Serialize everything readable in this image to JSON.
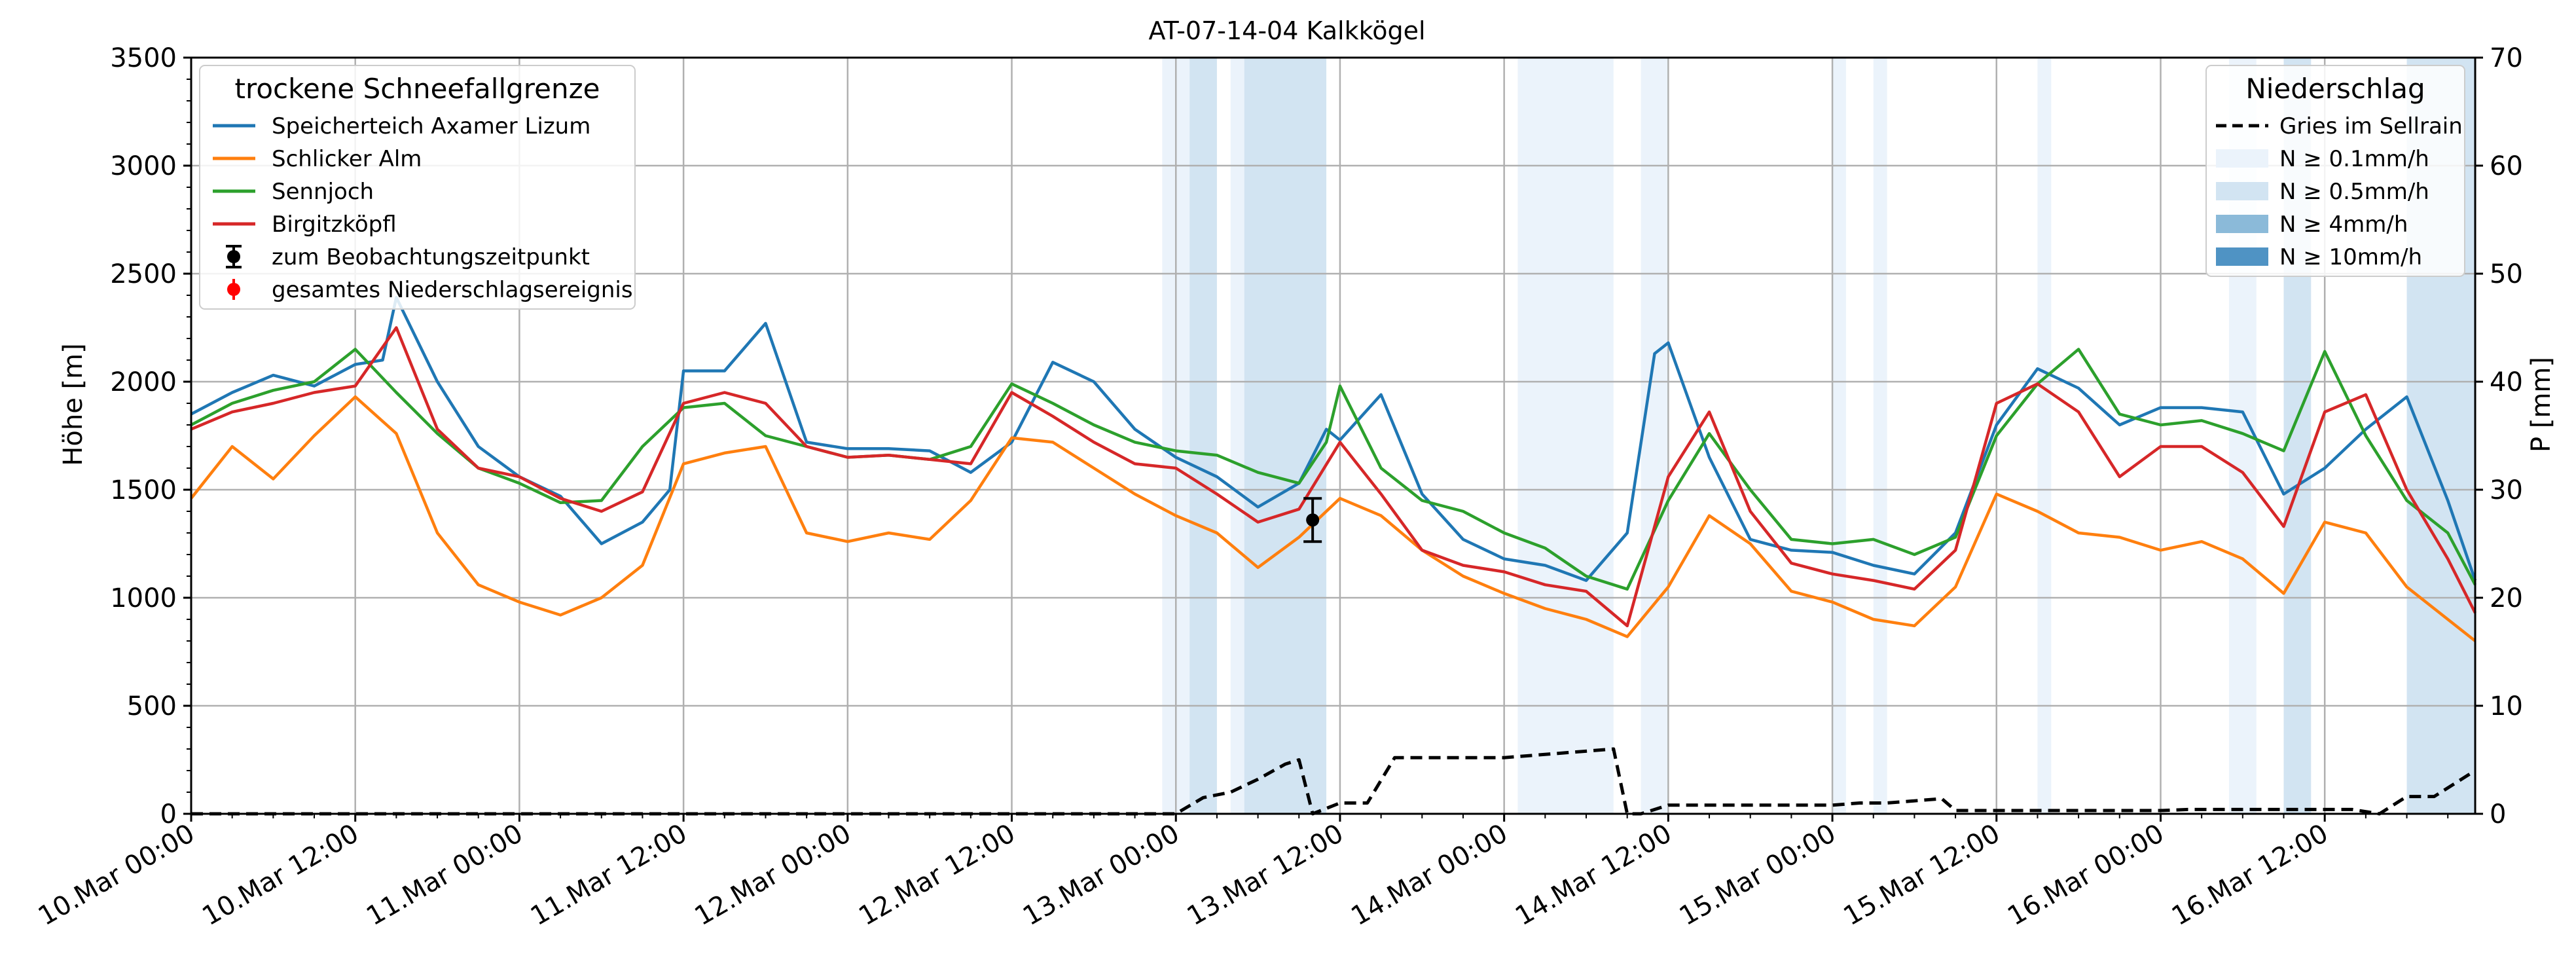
{
  "chart_data": {
    "type": "line",
    "title": "AT-07-14-04 Kalkkögel",
    "ylabel": "Höhe [m]",
    "ylabel_right": "P [mm]",
    "xlim": [
      "10.Mar 00:00",
      "16.Mar 23:00"
    ],
    "ylim": [
      0,
      3500
    ],
    "ylim_right": [
      0,
      70
    ],
    "grid": true,
    "x_ticks": [
      "10.Mar 00:00",
      "10.Mar 12:00",
      "11.Mar 00:00",
      "11.Mar 12:00",
      "12.Mar 00:00",
      "12.Mar 12:00",
      "13.Mar 00:00",
      "13.Mar 12:00",
      "14.Mar 00:00",
      "14.Mar 12:00",
      "15.Mar 00:00",
      "15.Mar 12:00",
      "16.Mar 00:00",
      "16.Mar 12:00"
    ],
    "y_ticks": [
      0,
      500,
      1000,
      1500,
      2000,
      2500,
      3000,
      3500
    ],
    "y_ticks_right": [
      0,
      10,
      20,
      30,
      40,
      50,
      60,
      70
    ],
    "legend_left": {
      "title": "trockene Schneefallgrenze",
      "placement": "top-left",
      "items": [
        "Speicherteich Axamer Lizum",
        "Schlicker Alm",
        "Sennjoch",
        "Birgitzköpfl",
        "zum Beobachtungszeitpunkt",
        "gesamtes Niederschlagsereignis"
      ]
    },
    "legend_right": {
      "title": "Niederschlag",
      "placement": "top-right",
      "items": [
        "Gries im Sellrain",
        "N ≥ 0.1mm/h",
        "N ≥ 0.5mm/h",
        "N ≥ 4mm/h",
        "N ≥ 10mm/h"
      ]
    },
    "series": [
      {
        "name": "Speicherteich Axamer Lizum",
        "color": "#1f77b4",
        "x": [
          "10.Mar 00:00",
          "10.Mar 03:00",
          "10.Mar 06:00",
          "10.Mar 09:00",
          "10.Mar 12:00",
          "10.Mar 14:00",
          "10.Mar 15:00",
          "10.Mar 18:00",
          "10.Mar 21:00",
          "11.Mar 00:00",
          "11.Mar 03:00",
          "11.Mar 06:00",
          "11.Mar 09:00",
          "11.Mar 11:00",
          "11.Mar 12:00",
          "11.Mar 15:00",
          "11.Mar 18:00",
          "11.Mar 21:00",
          "12.Mar 00:00",
          "12.Mar 03:00",
          "12.Mar 06:00",
          "12.Mar 09:00",
          "12.Mar 12:00",
          "12.Mar 15:00",
          "12.Mar 18:00",
          "12.Mar 21:00",
          "13.Mar 00:00",
          "13.Mar 03:00",
          "13.Mar 06:00",
          "13.Mar 09:00",
          "13.Mar 11:00",
          "13.Mar 12:00",
          "13.Mar 15:00",
          "13.Mar 18:00",
          "13.Mar 21:00",
          "14.Mar 00:00",
          "14.Mar 03:00",
          "14.Mar 06:00",
          "14.Mar 09:00",
          "14.Mar 11:00",
          "14.Mar 12:00",
          "14.Mar 15:00",
          "14.Mar 18:00",
          "14.Mar 21:00",
          "15.Mar 00:00",
          "15.Mar 03:00",
          "15.Mar 06:00",
          "15.Mar 09:00",
          "15.Mar 12:00",
          "15.Mar 15:00",
          "15.Mar 18:00",
          "15.Mar 21:00",
          "16.Mar 00:00",
          "16.Mar 03:00",
          "16.Mar 06:00",
          "16.Mar 09:00",
          "16.Mar 12:00",
          "16.Mar 15:00",
          "16.Mar 18:00",
          "16.Mar 21:00",
          "16.Mar 23:00"
        ],
        "values": [
          1850,
          1950,
          2030,
          1980,
          2080,
          2100,
          2390,
          2000,
          1700,
          1560,
          1470,
          1250,
          1350,
          1500,
          2050,
          2050,
          2270,
          1720,
          1690,
          1690,
          1680,
          1580,
          1720,
          2090,
          2000,
          1780,
          1650,
          1560,
          1420,
          1530,
          1780,
          1730,
          1940,
          1480,
          1270,
          1180,
          1150,
          1080,
          1300,
          2130,
          2180,
          1650,
          1270,
          1220,
          1210,
          1150,
          1110,
          1300,
          1800,
          2060,
          1970,
          1800,
          1880,
          1880,
          1860,
          1480,
          1600,
          1780,
          1930,
          1450,
          1080
        ]
      },
      {
        "name": "Schlicker Alm",
        "color": "#ff7f0e",
        "x": [
          "10.Mar 00:00",
          "10.Mar 03:00",
          "10.Mar 06:00",
          "10.Mar 09:00",
          "10.Mar 12:00",
          "10.Mar 15:00",
          "10.Mar 18:00",
          "10.Mar 21:00",
          "11.Mar 00:00",
          "11.Mar 03:00",
          "11.Mar 06:00",
          "11.Mar 09:00",
          "11.Mar 12:00",
          "11.Mar 15:00",
          "11.Mar 18:00",
          "11.Mar 21:00",
          "12.Mar 00:00",
          "12.Mar 03:00",
          "12.Mar 06:00",
          "12.Mar 09:00",
          "12.Mar 12:00",
          "12.Mar 15:00",
          "12.Mar 18:00",
          "12.Mar 21:00",
          "13.Mar 00:00",
          "13.Mar 03:00",
          "13.Mar 06:00",
          "13.Mar 09:00",
          "13.Mar 12:00",
          "13.Mar 15:00",
          "13.Mar 18:00",
          "13.Mar 21:00",
          "14.Mar 00:00",
          "14.Mar 03:00",
          "14.Mar 06:00",
          "14.Mar 09:00",
          "14.Mar 12:00",
          "14.Mar 15:00",
          "14.Mar 18:00",
          "14.Mar 21:00",
          "15.Mar 00:00",
          "15.Mar 03:00",
          "15.Mar 06:00",
          "15.Mar 09:00",
          "15.Mar 12:00",
          "15.Mar 15:00",
          "15.Mar 18:00",
          "15.Mar 21:00",
          "16.Mar 00:00",
          "16.Mar 03:00",
          "16.Mar 06:00",
          "16.Mar 09:00",
          "16.Mar 12:00",
          "16.Mar 15:00",
          "16.Mar 18:00",
          "16.Mar 21:00",
          "16.Mar 23:00"
        ],
        "values": [
          1460,
          1700,
          1550,
          1750,
          1930,
          1760,
          1300,
          1060,
          980,
          920,
          1000,
          1150,
          1620,
          1670,
          1700,
          1300,
          1260,
          1300,
          1270,
          1450,
          1740,
          1720,
          1600,
          1480,
          1380,
          1300,
          1140,
          1280,
          1460,
          1380,
          1220,
          1100,
          1020,
          950,
          900,
          820,
          1050,
          1380,
          1250,
          1030,
          980,
          900,
          870,
          1050,
          1480,
          1400,
          1300,
          1280,
          1220,
          1260,
          1180,
          1020,
          1350,
          1300,
          1050,
          900,
          800
        ]
      },
      {
        "name": "Sennjoch",
        "color": "#2ca02c",
        "x": [
          "10.Mar 00:00",
          "10.Mar 03:00",
          "10.Mar 06:00",
          "10.Mar 09:00",
          "10.Mar 12:00",
          "10.Mar 15:00",
          "10.Mar 18:00",
          "10.Mar 21:00",
          "11.Mar 00:00",
          "11.Mar 03:00",
          "11.Mar 06:00",
          "11.Mar 09:00",
          "11.Mar 12:00",
          "11.Mar 15:00",
          "11.Mar 18:00",
          "11.Mar 21:00",
          "12.Mar 00:00",
          "12.Mar 03:00",
          "12.Mar 06:00",
          "12.Mar 09:00",
          "12.Mar 12:00",
          "12.Mar 15:00",
          "12.Mar 18:00",
          "12.Mar 21:00",
          "13.Mar 00:00",
          "13.Mar 03:00",
          "13.Mar 06:00",
          "13.Mar 09:00",
          "13.Mar 11:00",
          "13.Mar 12:00",
          "13.Mar 15:00",
          "13.Mar 18:00",
          "13.Mar 21:00",
          "14.Mar 00:00",
          "14.Mar 03:00",
          "14.Mar 06:00",
          "14.Mar 09:00",
          "14.Mar 12:00",
          "14.Mar 15:00",
          "14.Mar 18:00",
          "14.Mar 21:00",
          "15.Mar 00:00",
          "15.Mar 03:00",
          "15.Mar 06:00",
          "15.Mar 09:00",
          "15.Mar 12:00",
          "15.Mar 15:00",
          "15.Mar 18:00",
          "15.Mar 21:00",
          "16.Mar 00:00",
          "16.Mar 03:00",
          "16.Mar 06:00",
          "16.Mar 09:00",
          "16.Mar 12:00",
          "16.Mar 15:00",
          "16.Mar 18:00",
          "16.Mar 21:00",
          "16.Mar 23:00"
        ],
        "values": [
          1800,
          1900,
          1960,
          2000,
          2150,
          1950,
          1760,
          1600,
          1530,
          1440,
          1450,
          1700,
          1880,
          1900,
          1750,
          1700,
          1650,
          1660,
          1640,
          1700,
          1990,
          1900,
          1800,
          1720,
          1680,
          1660,
          1580,
          1530,
          1720,
          1980,
          1600,
          1450,
          1400,
          1300,
          1230,
          1100,
          1040,
          1450,
          1760,
          1500,
          1270,
          1250,
          1270,
          1200,
          1280,
          1750,
          1990,
          2150,
          1850,
          1800,
          1820,
          1760,
          1680,
          2140,
          1750,
          1450,
          1300,
          1060
        ]
      },
      {
        "name": "Birgitzköpfl",
        "color": "#d62728",
        "x": [
          "10.Mar 00:00",
          "10.Mar 03:00",
          "10.Mar 06:00",
          "10.Mar 09:00",
          "10.Mar 12:00",
          "10.Mar 15:00",
          "10.Mar 18:00",
          "10.Mar 21:00",
          "11.Mar 00:00",
          "11.Mar 03:00",
          "11.Mar 06:00",
          "11.Mar 09:00",
          "11.Mar 12:00",
          "11.Mar 15:00",
          "11.Mar 18:00",
          "11.Mar 21:00",
          "12.Mar 00:00",
          "12.Mar 03:00",
          "12.Mar 06:00",
          "12.Mar 09:00",
          "12.Mar 12:00",
          "12.Mar 15:00",
          "12.Mar 18:00",
          "12.Mar 21:00",
          "13.Mar 00:00",
          "13.Mar 03:00",
          "13.Mar 06:00",
          "13.Mar 09:00",
          "13.Mar 12:00",
          "13.Mar 15:00",
          "13.Mar 18:00",
          "13.Mar 21:00",
          "14.Mar 00:00",
          "14.Mar 03:00",
          "14.Mar 06:00",
          "14.Mar 09:00",
          "14.Mar 12:00",
          "14.Mar 15:00",
          "14.Mar 18:00",
          "14.Mar 21:00",
          "15.Mar 00:00",
          "15.Mar 03:00",
          "15.Mar 06:00",
          "15.Mar 09:00",
          "15.Mar 12:00",
          "15.Mar 15:00",
          "15.Mar 18:00",
          "15.Mar 21:00",
          "16.Mar 00:00",
          "16.Mar 03:00",
          "16.Mar 06:00",
          "16.Mar 09:00",
          "16.Mar 12:00",
          "16.Mar 15:00",
          "16.Mar 18:00",
          "16.Mar 21:00",
          "16.Mar 23:00"
        ],
        "values": [
          1780,
          1860,
          1900,
          1950,
          1980,
          2250,
          1780,
          1600,
          1560,
          1460,
          1400,
          1490,
          1900,
          1950,
          1900,
          1700,
          1650,
          1660,
          1640,
          1620,
          1950,
          1840,
          1720,
          1620,
          1600,
          1480,
          1350,
          1410,
          1720,
          1480,
          1220,
          1150,
          1120,
          1060,
          1030,
          870,
          1560,
          1860,
          1400,
          1160,
          1110,
          1080,
          1040,
          1220,
          1900,
          1990,
          1860,
          1560,
          1700,
          1700,
          1580,
          1330,
          1860,
          1940,
          1500,
          1180,
          930
        ]
      },
      {
        "name": "Gries im Sellrain",
        "color": "#000000",
        "axis": "right",
        "x": [
          "10.Mar 00:00",
          "13.Mar 00:00",
          "13.Mar 02:00",
          "13.Mar 04:00",
          "13.Mar 06:00",
          "13.Mar 08:00",
          "13.Mar 09:00",
          "13.Mar 10:00",
          "13.Mar 12:00",
          "13.Mar 14:00",
          "13.Mar 16:00",
          "14.Mar 00:00",
          "14.Mar 04:00",
          "14.Mar 08:00",
          "14.Mar 09:00",
          "14.Mar 10:00",
          "14.Mar 12:00",
          "14.Mar 20:00",
          "15.Mar 00:00",
          "15.Mar 02:00",
          "15.Mar 04:00",
          "15.Mar 08:00",
          "15.Mar 09:00",
          "16.Mar 00:00",
          "16.Mar 02:00",
          "16.Mar 14:00",
          "16.Mar 16:00",
          "16.Mar 18:00",
          "16.Mar 20:00",
          "16.Mar 23:00"
        ],
        "values": [
          0,
          0,
          1.5,
          2,
          3.2,
          4.6,
          5,
          0,
          1,
          1,
          5.2,
          5.2,
          5.6,
          6,
          0,
          0,
          0.8,
          0.8,
          0.8,
          1,
          1,
          1.4,
          0.3,
          0.3,
          0.4,
          0.4,
          0,
          1.6,
          1.6,
          4
        ]
      }
    ],
    "observation": {
      "label": "zum Beobachtungszeitpunkt",
      "x": "13.Mar 10:00",
      "value": 1360,
      "error_low": 1260,
      "error_high": 1460
    },
    "precip_bands": [
      {
        "start": "12.Mar 23:00",
        "end": "13.Mar 01:00",
        "level": "N ≥ 0.1mm/h"
      },
      {
        "start": "13.Mar 01:00",
        "end": "13.Mar 03:00",
        "level": "N ≥ 0.5mm/h"
      },
      {
        "start": "13.Mar 04:00",
        "end": "13.Mar 05:00",
        "level": "N ≥ 0.1mm/h"
      },
      {
        "start": "13.Mar 05:00",
        "end": "13.Mar 11:00",
        "level": "N ≥ 0.5mm/h"
      },
      {
        "start": "14.Mar 01:00",
        "end": "14.Mar 04:00",
        "level": "N ≥ 0.5mm/h"
      },
      {
        "start": "14.Mar 01:00",
        "end": "14.Mar 08:00",
        "level": "N ≥ 0.1mm/h"
      },
      {
        "start": "14.Mar 10:00",
        "end": "14.Mar 12:00",
        "level": "N ≥ 0.1mm/h"
      },
      {
        "start": "15.Mar 00:00",
        "end": "15.Mar 01:00",
        "level": "N ≥ 0.1mm/h"
      },
      {
        "start": "15.Mar 03:00",
        "end": "15.Mar 04:00",
        "level": "N ≥ 0.1mm/h"
      },
      {
        "start": "15.Mar 15:00",
        "end": "15.Mar 16:00",
        "level": "N ≥ 0.1mm/h"
      },
      {
        "start": "16.Mar 05:00",
        "end": "16.Mar 07:00",
        "level": "N ≥ 0.1mm/h"
      },
      {
        "start": "16.Mar 09:00",
        "end": "16.Mar 11:00",
        "level": "N ≥ 0.5mm/h"
      },
      {
        "start": "16.Mar 18:00",
        "end": "16.Mar 23:00",
        "level": "N ≥ 0.5mm/h"
      }
    ],
    "colors": {
      "N ≥ 0.1mm/h": "#ebf3fb",
      "N ≥ 0.5mm/h": "#d2e4f2",
      "N ≥ 4mm/h": "#8bbad9",
      "N ≥ 10mm/h": "#4f93c4",
      "grid": "#b0b0b0"
    }
  }
}
